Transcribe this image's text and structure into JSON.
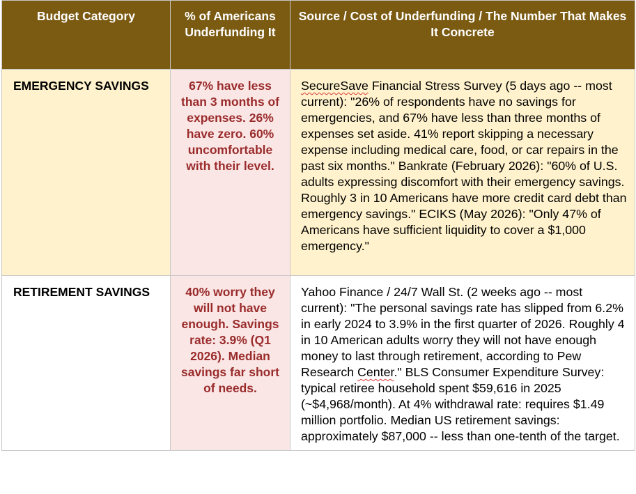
{
  "table": {
    "headers": {
      "category": "Budget Category",
      "percent": "% of Americans Underfunding It",
      "source": "Source / Cost of Underfunding / The Number That Makes It Concrete"
    },
    "rows": [
      {
        "category": "EMERGENCY SAVINGS",
        "percent": "67% have less than 3 months of expenses. 26% have zero. 60% uncomfortable with their level.",
        "source_name": "SecureSave",
        "source_text": " Financial Stress Survey (5 days ago -- most current): \"26% of respondents have no savings for emergencies, and 67% have less than three months of expenses set aside. 41% report skipping a necessary expense including medical care, food, or car repairs in the past six months.\" Bankrate (February 2026): \"60% of U.S. adults expressing discomfort with their emergency savings. Roughly 3 in 10 Americans have more credit card debt than emergency savings.\" ECIKS (May 2026): \"Only 47% of Americans have sufficient liquidity to cover a $1,000 emergency.\""
      },
      {
        "category": "RETIREMENT SAVINGS",
        "percent": "40% worry they will not have enough. Savings rate: 3.9% (Q1 2026). Median savings far short of needs.",
        "source_text_a": "Yahoo Finance / 24/7 Wall St. (2 weeks ago -- most current): \"The personal savings rate has slipped from 6.2% in early 2024 to 3.9% in the first quarter of 2026. Roughly 4 in 10 American adults worry they will not have enough money to last through retirement, according to Pew Research ",
        "source_text_squiggle": "Center",
        "source_text_b": ".\" BLS Consumer Expenditure Survey: typical retiree household spent $59,616 in 2025 (~$4,968/month). At 4% withdrawal rate: requires $1.49 million portfolio. Median US retirement savings: approximately $87,000 -- less than one-tenth of the target."
      }
    ]
  },
  "colors": {
    "header_bg": "#7b5a12",
    "row_highlight": "#fff2cc",
    "percent_cell_bg": "#fbe6e6",
    "percent_text": "#9a2b2b"
  }
}
